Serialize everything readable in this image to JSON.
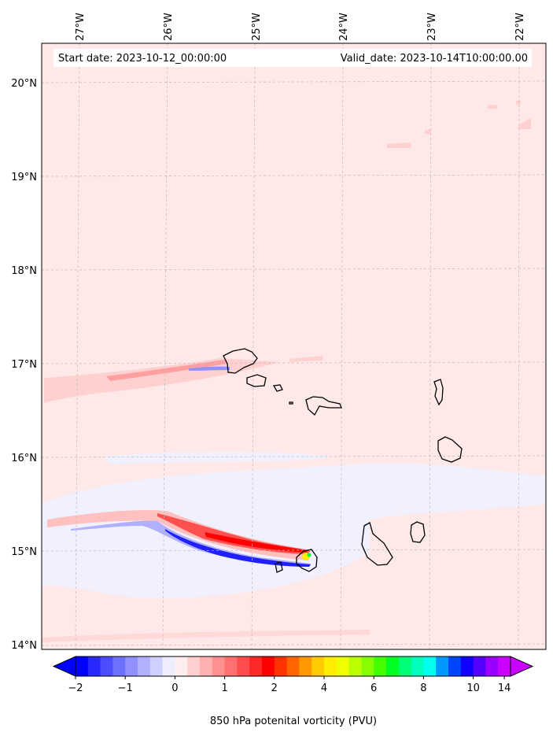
{
  "header": {
    "start_label": "Start date: 2023-10-12_00:00:00",
    "valid_label": "Valid_date: 2023-10-14T10:00:00.00"
  },
  "axes": {
    "lon_ticks": [
      "27°W",
      "26°W",
      "25°W",
      "24°W",
      "23°W",
      "22°W"
    ],
    "lat_ticks": [
      "20°N",
      "19°N",
      "18°N",
      "17°N",
      "16°N",
      "15°N",
      "14°N"
    ]
  },
  "colorbar": {
    "title": "850 hPa potenital vorticity (PVU)",
    "tick_labels": [
      "−2",
      "−1",
      "0",
      "1",
      "2",
      "4",
      "6",
      "8",
      "10",
      "14"
    ],
    "colors": [
      "#0000ff",
      "#2828ff",
      "#4d4dff",
      "#7070ff",
      "#9090ff",
      "#b0b0ff",
      "#d0d0ff",
      "#eeeeff",
      "#ffeeee",
      "#ffd0d0",
      "#ffb0b0",
      "#ff9090",
      "#ff7070",
      "#ff4d4d",
      "#ff2828",
      "#ff0000",
      "#ff3300",
      "#ff6600",
      "#ff9900",
      "#ffcc00",
      "#ffee00",
      "#eeff00",
      "#bbff00",
      "#88ff00",
      "#44ff00",
      "#00ff22",
      "#00ff77",
      "#00ffbb",
      "#00ffee",
      "#0099ff",
      "#0044ff",
      "#1100ff",
      "#5500ff",
      "#9900ff",
      "#cc00ff"
    ]
  },
  "colors": {
    "background_field": "#ffe8e8",
    "negative_pv": "#0000ff",
    "positive_pv": "#ff0000"
  }
}
